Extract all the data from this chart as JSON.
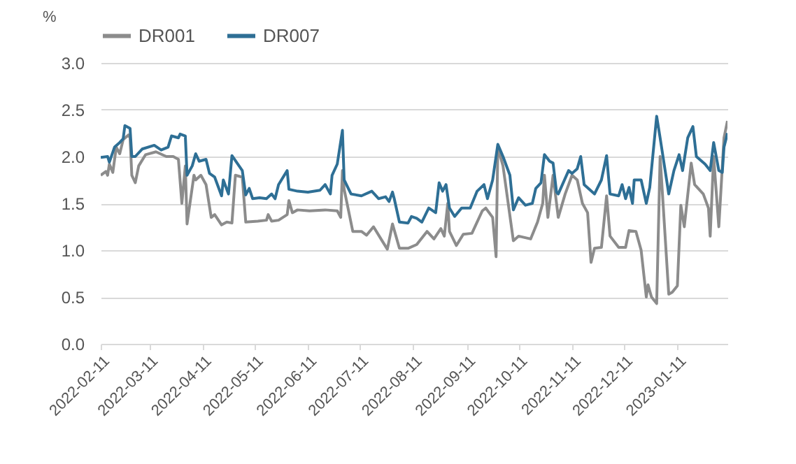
{
  "chart_data": {
    "type": "line",
    "ylabel": "%",
    "xlim": [
      "2022-02-11",
      "2023-02-09"
    ],
    "xticks": [
      "2022-02-11",
      "2022-03-11",
      "2022-04-11",
      "2022-05-11",
      "2022-06-11",
      "2022-07-11",
      "2022-08-11",
      "2022-09-11",
      "2022-10-11",
      "2022-11-11",
      "2022-12-11",
      "2023-01-11"
    ],
    "ylim": [
      0,
      3
    ],
    "yticks": [
      {
        "value": 0,
        "label": "0.0"
      },
      {
        "value": 0.5,
        "label": "0.5"
      },
      {
        "value": 1,
        "label": "1.0"
      },
      {
        "value": 1.5,
        "label": "1.5"
      },
      {
        "value": 2,
        "label": "2.0"
      },
      {
        "value": 2.5,
        "label": "2.5"
      },
      {
        "value": 3,
        "label": "3.0"
      }
    ],
    "grid": "y",
    "legend": "top",
    "line_style": "solid",
    "marker": "none",
    "series": [
      {
        "name": "DR001",
        "color": "#8c8c8c",
        "x": [
          "2022-02-11",
          "2022-02-14",
          "2022-02-15",
          "2022-02-16",
          "2022-02-18",
          "2022-02-20",
          "2022-02-22",
          "2022-02-24",
          "2022-02-27",
          "2022-02-28",
          "2022-03-01",
          "2022-03-03",
          "2022-03-05",
          "2022-03-09",
          "2022-03-15",
          "2022-03-21",
          "2022-03-25",
          "2022-03-28",
          "2022-03-30",
          "2022-04-01",
          "2022-04-02",
          "2022-04-06",
          "2022-04-07",
          "2022-04-10",
          "2022-04-13",
          "2022-04-16",
          "2022-04-18",
          "2022-04-22",
          "2022-04-25",
          "2022-04-28",
          "2022-04-30",
          "2022-05-04",
          "2022-05-06",
          "2022-05-13",
          "2022-05-18",
          "2022-05-19",
          "2022-05-21",
          "2022-05-25",
          "2022-05-30",
          "2022-05-31",
          "2022-06-02",
          "2022-06-05",
          "2022-06-12",
          "2022-06-21",
          "2022-06-28",
          "2022-06-30",
          "2022-07-01",
          "2022-07-02",
          "2022-07-07",
          "2022-07-12",
          "2022-07-15",
          "2022-07-19",
          "2022-07-24",
          "2022-07-27",
          "2022-07-30",
          "2022-08-01",
          "2022-08-03",
          "2022-08-08",
          "2022-08-13",
          "2022-08-19",
          "2022-08-23",
          "2022-08-27",
          "2022-08-29",
          "2022-08-31",
          "2022-09-01",
          "2022-09-05",
          "2022-09-09",
          "2022-09-14",
          "2022-09-20",
          "2022-09-22",
          "2022-09-26",
          "2022-09-28",
          "2022-09-29",
          "2022-10-02",
          "2022-10-08",
          "2022-10-11",
          "2022-10-18",
          "2022-10-22",
          "2022-10-25",
          "2022-10-26",
          "2022-10-28",
          "2022-10-31",
          "2022-11-03",
          "2022-11-07",
          "2022-11-11",
          "2022-11-14",
          "2022-11-17",
          "2022-11-20",
          "2022-11-22",
          "2022-11-24",
          "2022-11-28",
          "2022-12-01",
          "2022-12-03",
          "2022-12-08",
          "2022-12-12",
          "2022-12-14",
          "2022-12-18",
          "2022-12-21",
          "2022-12-24",
          "2022-12-25",
          "2022-12-27",
          "2022-12-30",
          "2023-01-01",
          "2023-01-06",
          "2023-01-08",
          "2023-01-11",
          "2023-01-13",
          "2023-01-15",
          "2023-01-19",
          "2023-01-21",
          "2023-01-26",
          "2023-01-29",
          "2023-01-30",
          "2023-02-01",
          "2023-02-04",
          "2023-02-07",
          "2023-02-09"
        ],
        "values": [
          1.8,
          1.84,
          1.8,
          1.92,
          1.83,
          2.1,
          2.03,
          2.18,
          2.23,
          2.2,
          1.8,
          1.72,
          1.9,
          2.02,
          2.05,
          2.0,
          2.0,
          1.97,
          1.5,
          1.9,
          1.28,
          1.8,
          1.75,
          1.8,
          1.7,
          1.35,
          1.38,
          1.27,
          1.3,
          1.29,
          1.8,
          1.78,
          1.3,
          1.31,
          1.32,
          1.38,
          1.31,
          1.32,
          1.38,
          1.53,
          1.4,
          1.43,
          1.42,
          1.43,
          1.42,
          1.35,
          1.85,
          1.65,
          1.2,
          1.2,
          1.16,
          1.25,
          1.1,
          1.01,
          1.28,
          1.15,
          1.02,
          1.02,
          1.06,
          1.2,
          1.12,
          1.23,
          1.15,
          1.5,
          1.2,
          1.05,
          1.17,
          1.18,
          1.42,
          1.45,
          1.35,
          0.93,
          2.1,
          1.9,
          1.1,
          1.15,
          1.12,
          1.3,
          1.5,
          1.8,
          1.35,
          1.8,
          1.35,
          1.6,
          1.8,
          1.75,
          1.5,
          1.4,
          0.87,
          1.02,
          1.03,
          1.58,
          1.15,
          1.03,
          1.03,
          1.21,
          1.2,
          1.0,
          0.5,
          0.63,
          0.5,
          0.43,
          2.0,
          0.53,
          0.55,
          0.62,
          1.48,
          1.25,
          1.93,
          1.7,
          1.6,
          1.45,
          1.15,
          2.0,
          1.25,
          2.2,
          2.38
        ]
      },
      {
        "name": "DR007",
        "color": "#2e6f95",
        "x": [
          "2022-02-11",
          "2022-02-15",
          "2022-02-16",
          "2022-02-19",
          "2022-02-22",
          "2022-02-24",
          "2022-02-25",
          "2022-02-28",
          "2022-03-01",
          "2022-03-03",
          "2022-03-07",
          "2022-03-14",
          "2022-03-18",
          "2022-03-22",
          "2022-03-24",
          "2022-03-28",
          "2022-03-29",
          "2022-04-01",
          "2022-04-02",
          "2022-04-05",
          "2022-04-07",
          "2022-04-09",
          "2022-04-13",
          "2022-04-15",
          "2022-04-18",
          "2022-04-22",
          "2022-04-23",
          "2022-04-26",
          "2022-04-28",
          "2022-05-04",
          "2022-05-06",
          "2022-05-08",
          "2022-05-10",
          "2022-05-14",
          "2022-05-18",
          "2022-05-21",
          "2022-05-23",
          "2022-05-25",
          "2022-05-30",
          "2022-05-31",
          "2022-06-05",
          "2022-06-11",
          "2022-06-18",
          "2022-06-21",
          "2022-06-24",
          "2022-06-25",
          "2022-06-28",
          "2022-07-01",
          "2022-07-02",
          "2022-07-06",
          "2022-07-12",
          "2022-07-18",
          "2022-07-22",
          "2022-07-26",
          "2022-07-28",
          "2022-07-30",
          "2022-07-31",
          "2022-08-03",
          "2022-08-08",
          "2022-08-10",
          "2022-08-13",
          "2022-08-16",
          "2022-08-20",
          "2022-08-24",
          "2022-08-26",
          "2022-08-28",
          "2022-08-30",
          "2022-09-01",
          "2022-09-04",
          "2022-09-08",
          "2022-09-13",
          "2022-09-17",
          "2022-09-21",
          "2022-09-23",
          "2022-09-26",
          "2022-09-29",
          "2022-10-02",
          "2022-10-06",
          "2022-10-08",
          "2022-10-11",
          "2022-10-15",
          "2022-10-19",
          "2022-10-21",
          "2022-10-24",
          "2022-10-26",
          "2022-10-29",
          "2022-10-31",
          "2022-11-02",
          "2022-11-03",
          "2022-11-09",
          "2022-11-11",
          "2022-11-14",
          "2022-11-16",
          "2022-11-18",
          "2022-11-24",
          "2022-11-28",
          "2022-12-01",
          "2022-12-03",
          "2022-12-08",
          "2022-12-10",
          "2022-12-12",
          "2022-12-14",
          "2022-12-16",
          "2022-12-17",
          "2022-12-21",
          "2022-12-24",
          "2022-12-26",
          "2022-12-30",
          "2023-01-01",
          "2023-01-06",
          "2023-01-09",
          "2023-01-12",
          "2023-01-14",
          "2023-01-17",
          "2023-01-20",
          "2023-01-22",
          "2023-01-27",
          "2023-01-30",
          "2023-02-01",
          "2023-02-04",
          "2023-02-06",
          "2023-02-07",
          "2023-02-09"
        ],
        "values": [
          1.99,
          2.0,
          1.94,
          2.1,
          2.15,
          2.19,
          2.33,
          2.3,
          2.0,
          2.0,
          2.08,
          2.12,
          2.07,
          2.1,
          2.22,
          2.2,
          2.24,
          2.22,
          1.8,
          1.9,
          2.03,
          1.95,
          1.97,
          1.82,
          1.78,
          1.58,
          1.75,
          1.6,
          2.01,
          1.85,
          1.59,
          1.66,
          1.55,
          1.56,
          1.55,
          1.6,
          1.55,
          1.7,
          1.85,
          1.65,
          1.63,
          1.62,
          1.64,
          1.7,
          1.6,
          1.8,
          1.92,
          2.28,
          1.75,
          1.6,
          1.58,
          1.63,
          1.55,
          1.57,
          1.52,
          1.62,
          1.55,
          1.3,
          1.29,
          1.36,
          1.34,
          1.3,
          1.45,
          1.4,
          1.72,
          1.63,
          1.7,
          1.45,
          1.36,
          1.45,
          1.45,
          1.63,
          1.7,
          1.55,
          1.75,
          2.13,
          2.0,
          1.8,
          1.43,
          1.56,
          1.48,
          1.5,
          1.66,
          1.72,
          2.02,
          1.95,
          1.93,
          1.62,
          1.6,
          1.85,
          1.82,
          1.87,
          2.0,
          1.7,
          1.6,
          1.75,
          2.01,
          1.6,
          1.58,
          1.7,
          1.55,
          1.67,
          1.5,
          1.75,
          1.75,
          1.5,
          1.67,
          2.43,
          2.2,
          1.6,
          1.85,
          2.02,
          1.85,
          2.2,
          2.32,
          2.0,
          1.92,
          1.85,
          2.15,
          1.85,
          1.83,
          2.1,
          2.25
        ]
      }
    ]
  }
}
